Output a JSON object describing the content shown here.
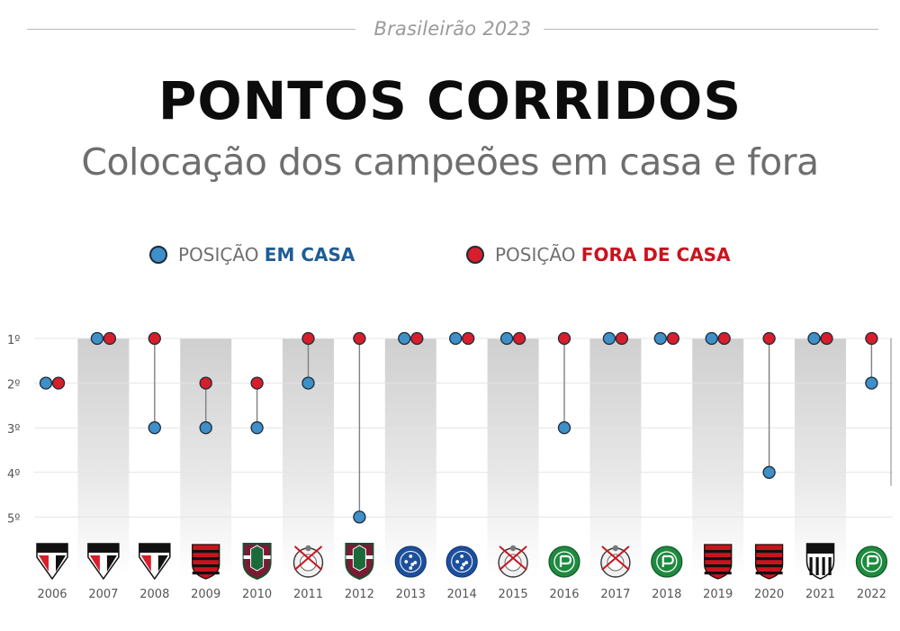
{
  "header": {
    "kicker": "Brasileirão 2023",
    "title": "PONTOS CORRIDOS",
    "subtitle": "Colocação dos campeões em casa e fora"
  },
  "legend": {
    "home_prefix": "POSIÇÃO",
    "home_emph": "EM CASA",
    "away_prefix": "POSIÇÃO",
    "away_emph": "FORA DE CASA"
  },
  "colors": {
    "home": "#3f8fc8",
    "away": "#d81e2a",
    "home_text": "#1f5d95",
    "away_text": "#c8141e",
    "stem": "#808080",
    "shade": "#d2d2d2",
    "grid": "#e4e4e4",
    "axis_text": "#555555"
  },
  "chart_data": {
    "type": "scatter",
    "title": "",
    "xlabel": "",
    "ylabel": "",
    "y_axis": "position, inverted (1º at top)",
    "yticks": [
      "1º",
      "2º",
      "3º",
      "4º",
      "5º"
    ],
    "ylim": [
      1,
      5
    ],
    "categories": [
      "2006",
      "2007",
      "2008",
      "2009",
      "2010",
      "2011",
      "2012",
      "2013",
      "2014",
      "2015",
      "2016",
      "2017",
      "2018",
      "2019",
      "2020",
      "2021",
      "2022"
    ],
    "champions": [
      "SPFC",
      "SPFC",
      "SPFC",
      "Flamengo",
      "Fluminense",
      "Corinthians",
      "Fluminense",
      "Cruzeiro",
      "Cruzeiro",
      "Corinthians",
      "Palmeiras",
      "Corinthians",
      "Palmeiras",
      "Flamengo",
      "Flamengo",
      "Atlético-MG",
      "Palmeiras"
    ],
    "champion_icons": [
      "spfc-crest-icon",
      "spfc-crest-icon",
      "spfc-crest-icon",
      "flamengo-crest-icon",
      "fluminense-crest-icon",
      "corinthians-crest-icon",
      "fluminense-crest-icon",
      "cruzeiro-crest-icon",
      "cruzeiro-crest-icon",
      "corinthians-crest-icon",
      "palmeiras-crest-icon",
      "corinthians-crest-icon",
      "palmeiras-crest-icon",
      "flamengo-crest-icon",
      "flamengo-crest-icon",
      "atletico-mg-crest-icon",
      "palmeiras-crest-icon"
    ],
    "series": [
      {
        "key": "home",
        "name": "POSIÇÃO EM CASA",
        "values": [
          2,
          1,
          3,
          3,
          3,
          2,
          5,
          1,
          1,
          1,
          3,
          1,
          1,
          1,
          4,
          1,
          2
        ]
      },
      {
        "key": "away",
        "name": "POSIÇÃO FORA DE CASA",
        "values": [
          2,
          1,
          1,
          2,
          2,
          1,
          1,
          1,
          1,
          1,
          1,
          1,
          1,
          1,
          1,
          1,
          1
        ]
      }
    ],
    "grid": true,
    "legend_position": "top"
  }
}
